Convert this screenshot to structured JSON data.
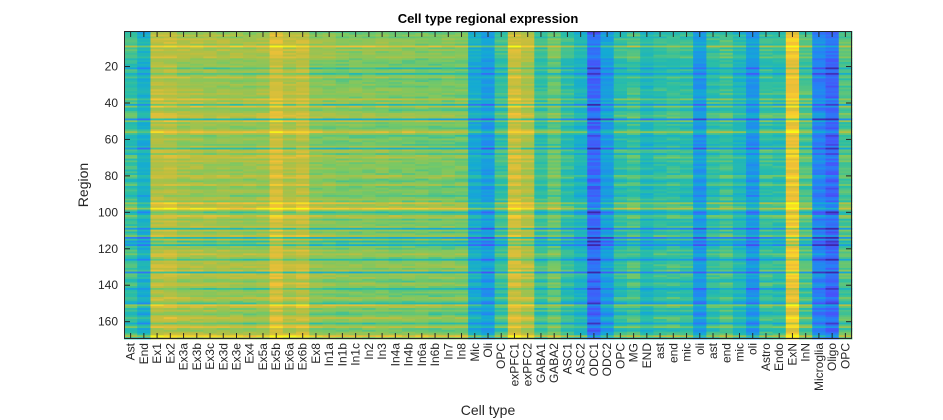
{
  "chart_data": {
    "type": "heatmap",
    "title": "Cell type regional expression",
    "xlabel": "Cell type",
    "ylabel": "Region",
    "y_ticks": [
      20,
      40,
      60,
      80,
      100,
      120,
      140,
      160
    ],
    "ylim": [
      0.5,
      169.5
    ],
    "n_regions": 169,
    "colormap": "parula",
    "categories": [
      "Ast",
      "End",
      "Ex1",
      "Ex2",
      "Ex3a",
      "Ex3b",
      "Ex3c",
      "Ex3d",
      "Ex3e",
      "Ex4",
      "Ex5a",
      "Ex5b",
      "Ex6a",
      "Ex6b",
      "Ex8",
      "In1a",
      "In1b",
      "In1c",
      "In2",
      "In3",
      "In4a",
      "In4b",
      "In6a",
      "In6b",
      "In7",
      "In8",
      "Mic",
      "Oli",
      "OPC",
      "exPFC1",
      "exPFC2",
      "GABA1",
      "GABA2",
      "ASC1",
      "ASC2",
      "ODC1",
      "ODC2",
      "OPC",
      "MG",
      "END",
      "ast",
      "end",
      "mic",
      "oli",
      "ast",
      "end",
      "mic",
      "oli",
      "Astro",
      "Endo",
      "ExN",
      "InN",
      "Microglia",
      "Oligo",
      "OPC"
    ],
    "column_mean_levels": [
      0.52,
      0.42,
      0.74,
      0.74,
      0.7,
      0.7,
      0.69,
      0.69,
      0.68,
      0.68,
      0.69,
      0.8,
      0.73,
      0.76,
      0.66,
      0.65,
      0.64,
      0.64,
      0.64,
      0.64,
      0.63,
      0.63,
      0.63,
      0.62,
      0.62,
      0.62,
      0.4,
      0.34,
      0.52,
      0.78,
      0.73,
      0.52,
      0.6,
      0.5,
      0.44,
      0.18,
      0.34,
      0.5,
      0.54,
      0.46,
      0.5,
      0.52,
      0.5,
      0.32,
      0.5,
      0.54,
      0.46,
      0.32,
      0.52,
      0.5,
      0.86,
      0.56,
      0.26,
      0.18,
      0.56
    ]
  }
}
